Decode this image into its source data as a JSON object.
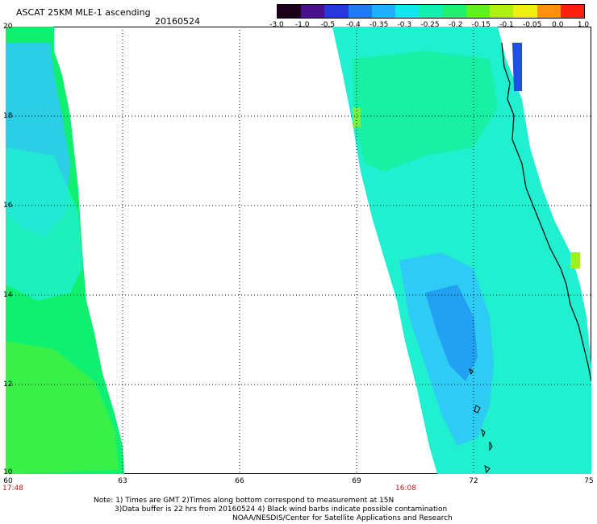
{
  "header": {
    "title": "ASCAT 25KM MLE-1 ascending",
    "date": "20160524"
  },
  "colorbar": {
    "labels": [
      "-3.0",
      "-1.0",
      "-0.5",
      "-0.4",
      "-0.35",
      "-0.3",
      "-0.25",
      "-0.2",
      "-0.15",
      "-0.1",
      "-0.05",
      "0.0",
      "1.0"
    ],
    "colors": [
      "#1a001a",
      "#4a1090",
      "#2838d8",
      "#1e7cf0",
      "#20b0ff",
      "#10e8f0",
      "#10f0b0",
      "#20f070",
      "#60f020",
      "#b0f010",
      "#f0f010",
      "#ff9010",
      "#ff2010"
    ]
  },
  "map": {
    "lat_labels": [
      "20",
      "18",
      "16",
      "14",
      "12",
      "10"
    ],
    "lon_labels": [
      "60",
      "63",
      "66",
      "69",
      "72",
      "75"
    ],
    "time_labels": [
      "17:48",
      "16:08"
    ],
    "swath_colors": {
      "cyan": "#20f0d0",
      "light_blue": "#30c8f8",
      "blue": "#2098f0",
      "deep_blue": "#1e50e0",
      "green": "#10f070",
      "bright_green": "#40f040",
      "yellow_green": "#a0f020"
    },
    "coast_color": "#000000"
  },
  "notes": {
    "line1": "Note: 1) Times are GMT 2)Times along bottom correspond to measurement at 15N",
    "line2": "3)Data buffer is 22 hrs from 20160524 4) Black wind barbs indicate possible contamination",
    "line3": "NOAA/NESDIS/Center for Satellite Applications and Research"
  }
}
